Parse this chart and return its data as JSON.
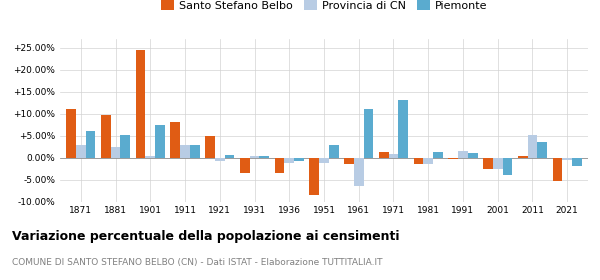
{
  "years": [
    1871,
    1881,
    1901,
    1911,
    1921,
    1931,
    1936,
    1951,
    1961,
    1971,
    1981,
    1991,
    2001,
    2011,
    2021
  ],
  "santo_stefano": [
    11.0,
    9.8,
    24.5,
    8.2,
    5.0,
    -3.5,
    -3.5,
    -8.5,
    -1.5,
    1.2,
    -1.5,
    -0.3,
    -2.5,
    0.5,
    -5.2
  ],
  "provincia_cn": [
    3.0,
    2.5,
    0.5,
    3.0,
    -0.8,
    0.5,
    -1.2,
    -1.2,
    -6.5,
    0.8,
    -1.5,
    1.5,
    -2.5,
    5.2,
    -0.5
  ],
  "piemonte": [
    6.0,
    5.2,
    7.5,
    3.0,
    0.7,
    0.5,
    -0.8,
    3.0,
    11.0,
    13.2,
    1.2,
    1.0,
    -4.0,
    3.5,
    -2.0
  ],
  "color_santo": "#e05c14",
  "color_provincia": "#b8cce4",
  "color_piemonte": "#5aabcf",
  "title": "Variazione percentuale della popolazione ai censimenti",
  "subtitle": "COMUNE DI SANTO STEFANO BELBO (CN) - Dati ISTAT - Elaborazione TUTTITALIA.IT",
  "ylim": [
    -10.0,
    27.0
  ],
  "yticks": [
    -10.0,
    -5.0,
    0.0,
    5.0,
    10.0,
    15.0,
    20.0,
    25.0
  ],
  "ytick_labels": [
    "-10.00%",
    "-5.00%",
    "0.00%",
    "+5.00%",
    "+10.00%",
    "+15.00%",
    "+20.00%",
    "+25.00%"
  ],
  "legend_labels": [
    "Santo Stefano Belbo",
    "Provincia di CN",
    "Piemonte"
  ],
  "bar_width": 0.28
}
